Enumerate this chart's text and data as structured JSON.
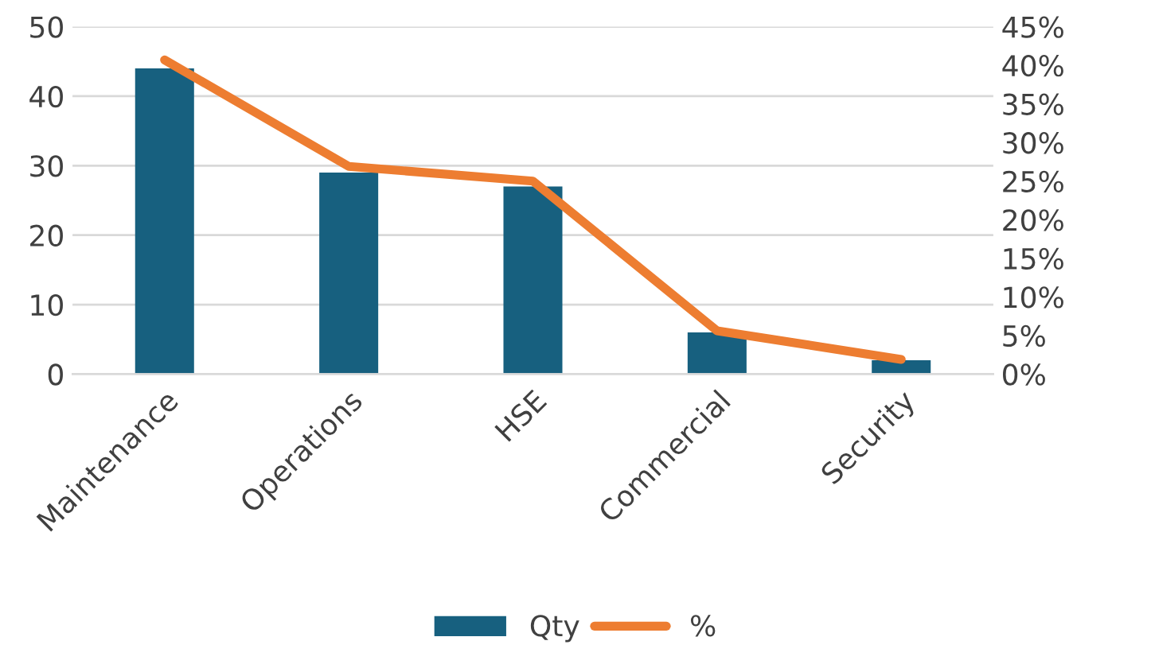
{
  "chart_data": {
    "type": "bar",
    "categories": [
      "Maintenance",
      "Operations",
      "HSE",
      "Commercial",
      "Security"
    ],
    "series": [
      {
        "name": "Qty",
        "color": "#17607f",
        "values": [
          44,
          29,
          27,
          6,
          2
        ]
      },
      {
        "name": "%",
        "type": "line",
        "axis": "y2",
        "color": "#ed7d31",
        "values": [
          40.7,
          26.9,
          25.0,
          5.6,
          1.9
        ]
      }
    ],
    "ylim": [
      0,
      50
    ],
    "yticks": [
      0,
      10,
      20,
      30,
      40,
      50
    ],
    "y2lim": [
      0,
      45
    ],
    "y2ticks": [
      {
        "value": 0,
        "label": "0%"
      },
      {
        "value": 5,
        "label": "5%"
      },
      {
        "value": 10,
        "label": "10%"
      },
      {
        "value": 15,
        "label": "15%"
      },
      {
        "value": 20,
        "label": "20%"
      },
      {
        "value": 25,
        "label": "25%"
      },
      {
        "value": 30,
        "label": "30%"
      },
      {
        "value": 35,
        "label": "35%"
      },
      {
        "value": 40,
        "label": "40%"
      },
      {
        "value": 45,
        "label": "45%"
      }
    ],
    "grid": "y",
    "legend": "bottom",
    "marker": "none",
    "line_style": "solid"
  }
}
